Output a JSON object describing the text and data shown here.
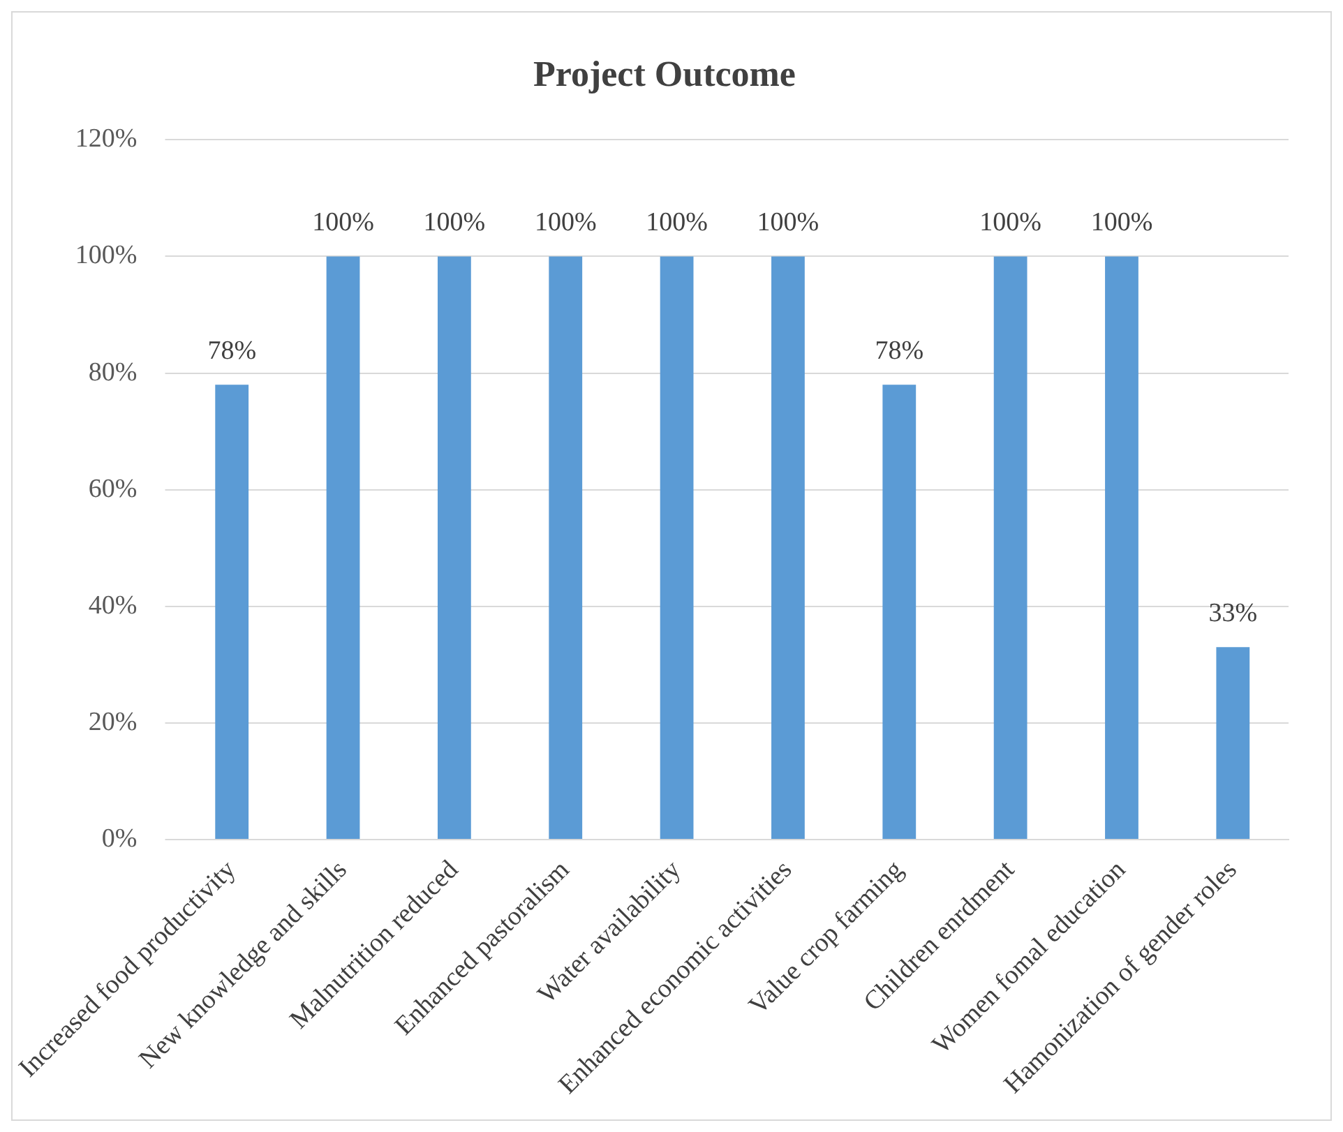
{
  "chart_data": {
    "type": "bar",
    "title": "Project Outcome",
    "categories": [
      "Increased food productivity",
      "New knowledge and skills",
      "Malnutrition reduced",
      "Enhanced pastoralism",
      "Water availability",
      "Enhanced economic activities",
      "Value crop farming",
      "Children enrdment",
      "Women fomal education",
      "Hamonization of gender roles"
    ],
    "values": [
      78,
      100,
      100,
      100,
      100,
      100,
      78,
      100,
      100,
      33
    ],
    "value_labels": [
      "78%",
      "100%",
      "100%",
      "100%",
      "100%",
      "100%",
      "78%",
      "100%",
      "100%",
      "33%"
    ],
    "color": "#5b9bd5",
    "ylim": [
      0,
      120
    ],
    "yticks": [
      {
        "value": 0,
        "label": "0%"
      },
      {
        "value": 20,
        "label": "20%"
      },
      {
        "value": 40,
        "label": "40%"
      },
      {
        "value": 60,
        "label": "60%"
      },
      {
        "value": 80,
        "label": "80%"
      },
      {
        "value": 100,
        "label": "100%"
      },
      {
        "value": 120,
        "label": "120%"
      }
    ],
    "grid": "y",
    "legend": false
  }
}
